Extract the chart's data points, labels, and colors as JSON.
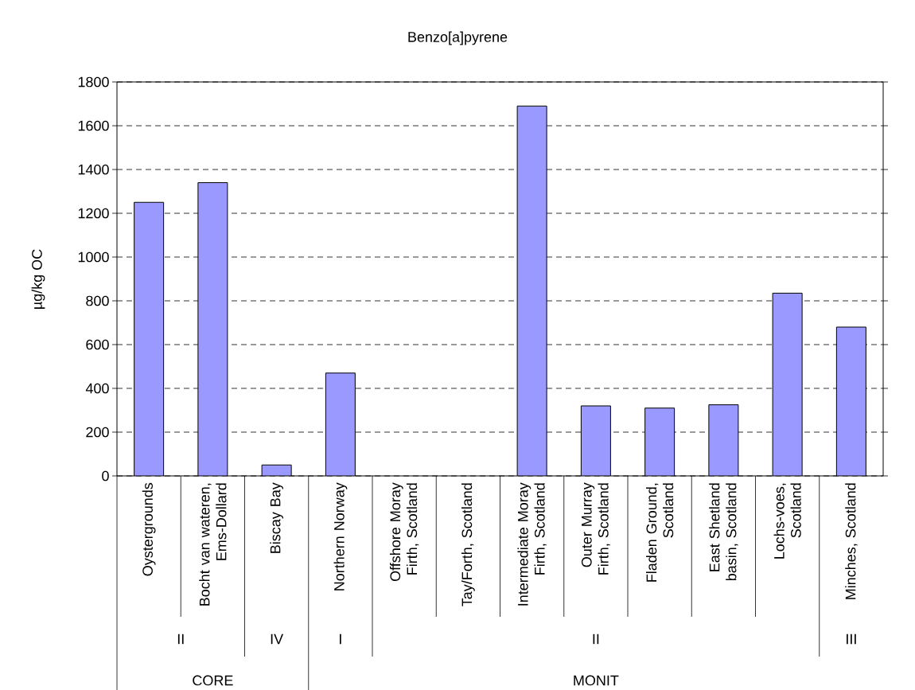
{
  "chart_data": {
    "type": "bar",
    "title": "Benzo[a]pyrene",
    "ylabel": "µg/kg OC",
    "categories": [
      "Oystergrounds",
      "Bocht van wateren, Ems-Dollard",
      "Biscay Bay",
      "Northern Norway",
      "Offshore Moray Firth, Scotland",
      "Tay/Forth, Scotland",
      "Intermediate Moray Firth, Scotland",
      "Outer Murray Firth, Scotland",
      "Fladen Ground, Scotland",
      "East Shetland basin, Scotland",
      "Lochs-voes, Scotland",
      "Minches, Scotland"
    ],
    "values": [
      1250,
      1340,
      50,
      470,
      null,
      null,
      1690,
      320,
      310,
      325,
      835,
      680
    ],
    "color": "#9999ff",
    "ylim": [
      0,
      1800
    ],
    "yticks": [
      0,
      200,
      400,
      600,
      800,
      1000,
      1200,
      1400,
      1600,
      1800
    ],
    "grid": "y",
    "annotations": [
      "II",
      "IV",
      "I",
      "II",
      "III",
      "CORE",
      "MONIT"
    ]
  }
}
